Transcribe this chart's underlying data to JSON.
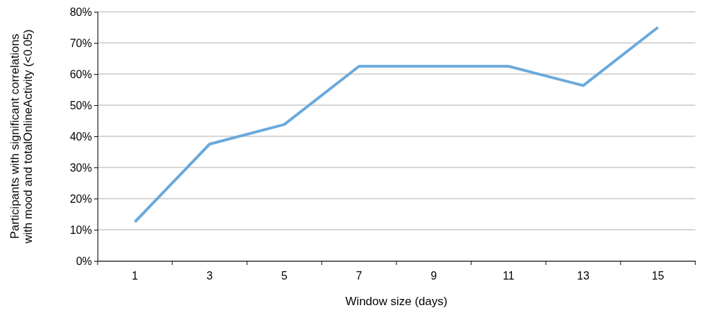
{
  "chart_data": {
    "type": "line",
    "xlabel": "Window size (days)",
    "ylabel": "Participants with significant correlations\nwith mood and totalOnlineActivity (<0.05)",
    "categories": [
      "1",
      "3",
      "5",
      "7",
      "9",
      "11",
      "13",
      "15"
    ],
    "series": [
      {
        "color": "#6aa9dc",
        "values": [
          12.5,
          37.5,
          43.8,
          62.5,
          62.5,
          62.5,
          56.3,
          75
        ]
      }
    ],
    "ylim": [
      0,
      80
    ],
    "yticks": [
      {
        "value": 0,
        "label": "0%"
      },
      {
        "value": 10,
        "label": "10%"
      },
      {
        "value": 20,
        "label": "20%"
      },
      {
        "value": 30,
        "label": "30%"
      },
      {
        "value": 40,
        "label": "40%"
      },
      {
        "value": 50,
        "label": "50%"
      },
      {
        "value": 60,
        "label": "60%"
      },
      {
        "value": 70,
        "label": "70%"
      },
      {
        "value": 80,
        "label": "80%"
      }
    ],
    "grid": "y",
    "marker": "none",
    "line_style": "solid"
  }
}
